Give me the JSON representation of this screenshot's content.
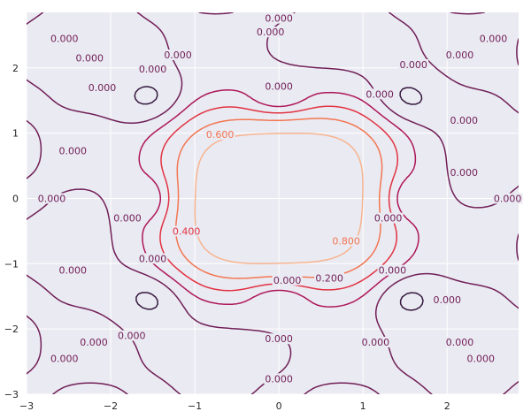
{
  "chart_data": {
    "type": "contour",
    "title": "",
    "xlabel": "",
    "ylabel": "",
    "xlim": [
      -3,
      2.85
    ],
    "ylim": [
      -3,
      2.85
    ],
    "x_ticks": [
      "−3",
      "−2",
      "−1",
      "0",
      "1",
      "2"
    ],
    "y_ticks": [
      "−3",
      "−2",
      "−1",
      "0",
      "1",
      "2"
    ],
    "grid": true,
    "background": "#eaeaf2",
    "levels": [
      {
        "value": 0.0,
        "label": "0.000",
        "color": "#701f57"
      },
      {
        "value": 0.2,
        "label": "0.200",
        "color": "#ad1759"
      },
      {
        "value": 0.4,
        "label": "0.400",
        "color": "#e13342"
      },
      {
        "value": 0.6,
        "label": "0.600",
        "color": "#f37651"
      },
      {
        "value": 0.8,
        "label": "0.800",
        "color": "#f6b48f"
      },
      {
        "value": -0.2,
        "label": "",
        "color": "#35193e"
      },
      {
        "value": -0.4,
        "label": "",
        "color": "#1a1026"
      }
    ],
    "contour_labels": [
      {
        "text": "0.000",
        "x": 0.0,
        "y": 2.76,
        "color": "#701f57"
      },
      {
        "text": "0.000",
        "x": -0.1,
        "y": 2.55,
        "color": "#701f57"
      },
      {
        "text": "0.000",
        "x": -2.55,
        "y": 2.45,
        "color": "#701f57"
      },
      {
        "text": "0.000",
        "x": -2.25,
        "y": 2.15,
        "color": "#701f57"
      },
      {
        "text": "0.000",
        "x": -1.5,
        "y": 1.98,
        "color": "#701f57"
      },
      {
        "text": "0.000",
        "x": -1.2,
        "y": 2.2,
        "color": "#701f57"
      },
      {
        "text": "0.000",
        "x": 0.0,
        "y": 1.72,
        "color": "#701f57"
      },
      {
        "text": "0.000",
        "x": -2.1,
        "y": 1.7,
        "color": "#701f57"
      },
      {
        "text": "0.000",
        "x": -2.45,
        "y": 0.73,
        "color": "#701f57"
      },
      {
        "text": "0.000",
        "x": -2.7,
        "y": 0.0,
        "color": "#701f57"
      },
      {
        "text": "0.000",
        "x": -1.8,
        "y": -0.3,
        "color": "#701f57"
      },
      {
        "text": "0.000",
        "x": -1.5,
        "y": -0.92,
        "color": "#701f57"
      },
      {
        "text": "0.000",
        "x": -2.45,
        "y": -1.1,
        "color": "#701f57"
      },
      {
        "text": "0.000",
        "x": 0.1,
        "y": -1.25,
        "color": "#701f57"
      },
      {
        "text": "0.200",
        "x": 0.6,
        "y": -1.22,
        "color": "#701f57"
      },
      {
        "text": "0.400",
        "x": -1.1,
        "y": -0.5,
        "color": "#e13342"
      },
      {
        "text": "0.600",
        "x": -0.7,
        "y": 0.98,
        "color": "#f37651"
      },
      {
        "text": "0.800",
        "x": 0.8,
        "y": -0.65,
        "color": "#f37651"
      },
      {
        "text": "0.000",
        "x": 1.2,
        "y": 1.6,
        "color": "#701f57"
      },
      {
        "text": "0.000",
        "x": 1.6,
        "y": 2.05,
        "color": "#701f57"
      },
      {
        "text": "0.000",
        "x": 2.15,
        "y": 2.2,
        "color": "#701f57"
      },
      {
        "text": "0.000",
        "x": 2.55,
        "y": 2.45,
        "color": "#701f57"
      },
      {
        "text": "0.000",
        "x": 2.2,
        "y": 1.2,
        "color": "#701f57"
      },
      {
        "text": "0.000",
        "x": 2.2,
        "y": 0.4,
        "color": "#701f57"
      },
      {
        "text": "0.000",
        "x": 2.72,
        "y": 0.0,
        "color": "#701f57"
      },
      {
        "text": "0.000",
        "x": 1.3,
        "y": -0.3,
        "color": "#701f57"
      },
      {
        "text": "0.000",
        "x": 1.35,
        "y": -1.1,
        "color": "#701f57"
      },
      {
        "text": "0.000",
        "x": 2.0,
        "y": -1.55,
        "color": "#701f57"
      },
      {
        "text": "0.000",
        "x": -1.75,
        "y": -2.1,
        "color": "#701f57"
      },
      {
        "text": "0.000",
        "x": -2.2,
        "y": -2.2,
        "color": "#701f57"
      },
      {
        "text": "0.000",
        "x": -2.55,
        "y": -2.45,
        "color": "#701f57"
      },
      {
        "text": "0.000",
        "x": 0.0,
        "y": -2.15,
        "color": "#701f57"
      },
      {
        "text": "0.000",
        "x": 0.0,
        "y": -2.76,
        "color": "#701f57"
      },
      {
        "text": "0.000",
        "x": 1.15,
        "y": -2.2,
        "color": "#701f57"
      },
      {
        "text": "0.000",
        "x": 2.15,
        "y": -2.2,
        "color": "#701f57"
      },
      {
        "text": "0.000",
        "x": 2.4,
        "y": -2.45,
        "color": "#701f57"
      }
    ]
  }
}
